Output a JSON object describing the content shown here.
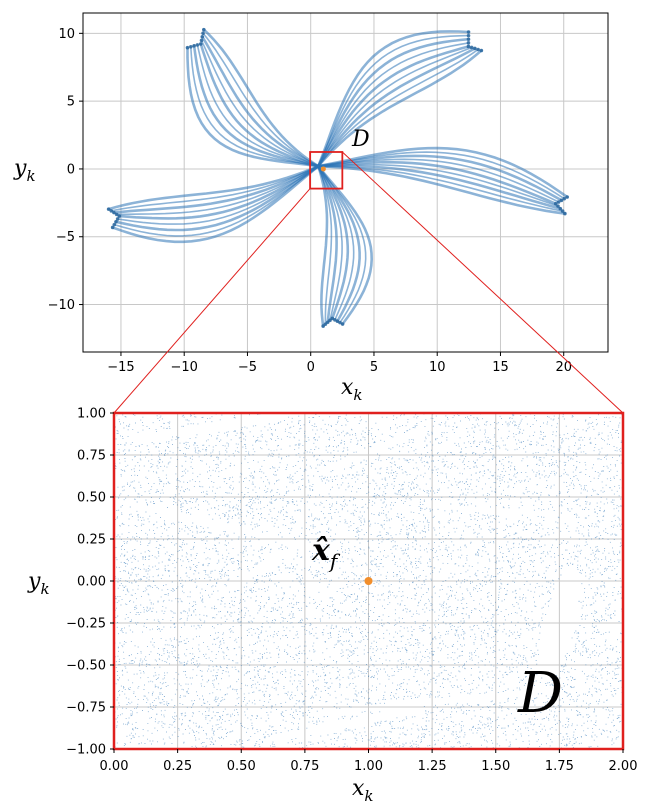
{
  "chart_data": [
    {
      "type": "scatter",
      "title": "",
      "xlabel": "x",
      "xlabel_sub": "k",
      "ylabel": "y",
      "ylabel_sub": "k",
      "xlim": [
        -18,
        23.5
      ],
      "ylim": [
        -13.5,
        11.5
      ],
      "xticks": [
        -15,
        -10,
        -5,
        0,
        5,
        10,
        15,
        20
      ],
      "xtick_labels": [
        "−15",
        "−10",
        "−5",
        "0",
        "5",
        "10",
        "15",
        "20"
      ],
      "yticks": [
        10,
        5,
        0,
        -5,
        -10
      ],
      "ytick_labels": [
        "10",
        "5",
        "0",
        "−5",
        "−10"
      ],
      "grid": true,
      "point_color": "#2e75b6",
      "fixed_point": {
        "x": 1.0,
        "y": 0.0,
        "color": "#f28e2b"
      },
      "zoom_box": {
        "x": [
          -0.05,
          2.5
        ],
        "y": [
          -1.45,
          1.25
        ],
        "color": "#e0201e"
      },
      "region_label": "D",
      "arms": [
        {
          "name": "upper-left",
          "tip_x": -9.5,
          "tip_y": 10.0,
          "width": 6.0
        },
        {
          "name": "upper-right",
          "tip_x": 13.5,
          "tip_y": 9.8,
          "width": 5.5
        },
        {
          "name": "right",
          "tip_x": 21.0,
          "tip_y": -2.8,
          "width": 4.0
        },
        {
          "name": "lower",
          "tip_x": 1.8,
          "tip_y": -12.0,
          "width": 5.0
        },
        {
          "name": "left",
          "tip_x": -16.5,
          "tip_y": -3.8,
          "width": 4.5
        }
      ]
    },
    {
      "type": "scatter",
      "title": "",
      "xlabel": "x",
      "xlabel_sub": "k",
      "ylabel": "y",
      "ylabel_sub": "k",
      "xlim": [
        0.0,
        2.0
      ],
      "ylim": [
        -1.0,
        1.0
      ],
      "xticks": [
        0.0,
        0.25,
        0.5,
        0.75,
        1.0,
        1.25,
        1.5,
        1.75,
        2.0
      ],
      "xtick_labels": [
        "0.00",
        "0.25",
        "0.50",
        "0.75",
        "1.00",
        "1.25",
        "1.50",
        "1.75",
        "2.00"
      ],
      "yticks": [
        1.0,
        0.75,
        0.5,
        0.25,
        0.0,
        -0.25,
        -0.5,
        -0.75,
        -1.0
      ],
      "ytick_labels": [
        "1.00",
        "0.75",
        "0.50",
        "0.25",
        "0.00",
        "−0.25",
        "−0.50",
        "−0.75",
        "−1.00"
      ],
      "grid": true,
      "point_color": "#2e75b6",
      "frame_color": "#e0201e",
      "fixed_point": {
        "x": 1.0,
        "y": 0.0,
        "color": "#f28e2b",
        "label": "x̂",
        "label_sub": "f"
      },
      "region_label": "D"
    }
  ]
}
